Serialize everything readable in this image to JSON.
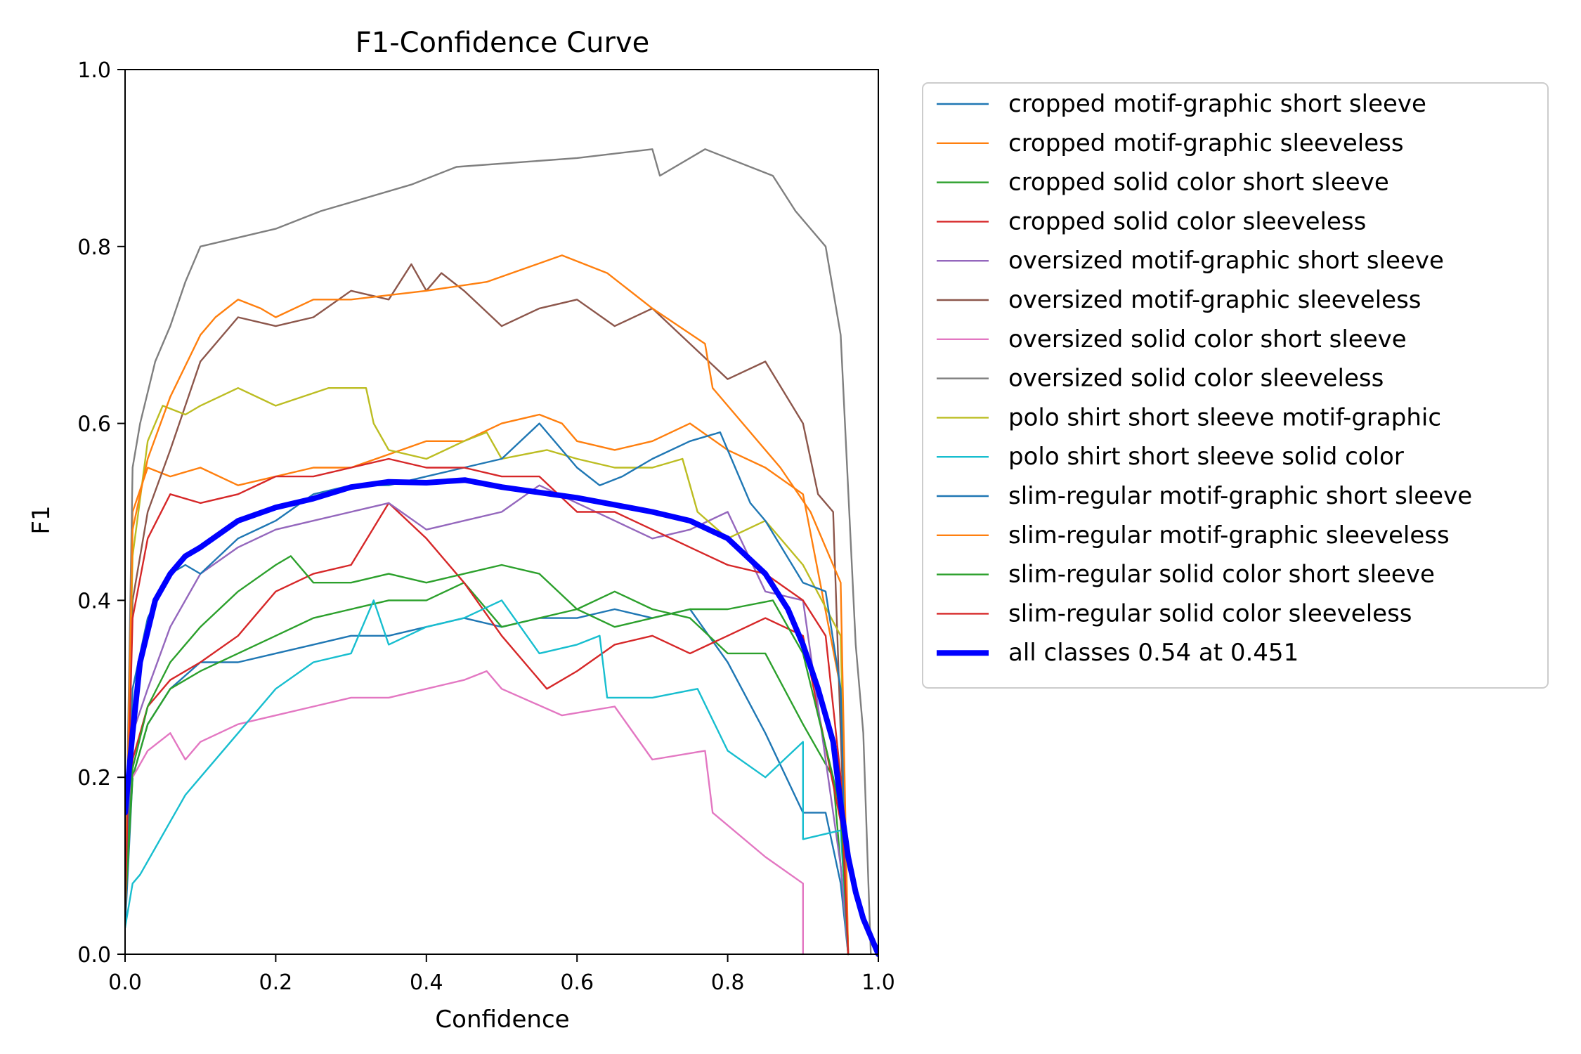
{
  "chart_data": {
    "type": "line",
    "title": "F1-Confidence Curve",
    "xlabel": "Confidence",
    "ylabel": "F1",
    "xlim": [
      0.0,
      1.0
    ],
    "ylim": [
      0.0,
      1.0
    ],
    "xticks": [
      "0.0",
      "0.2",
      "0.4",
      "0.6",
      "0.8",
      "1.0"
    ],
    "yticks": [
      "0.0",
      "0.2",
      "0.4",
      "0.6",
      "0.8",
      "1.0"
    ],
    "grid": false,
    "legend_position": "outside-right-top",
    "series": [
      {
        "name": "cropped motif-graphic short sleeve",
        "color": "#1f77b4",
        "x": [
          0,
          0.01,
          0.03,
          0.06,
          0.1,
          0.15,
          0.2,
          0.25,
          0.3,
          0.35,
          0.4,
          0.45,
          0.5,
          0.55,
          0.6,
          0.65,
          0.7,
          0.75,
          0.8,
          0.85,
          0.9,
          0.93,
          0.95,
          0.96
        ],
        "y": [
          0.03,
          0.2,
          0.26,
          0.3,
          0.33,
          0.33,
          0.34,
          0.35,
          0.36,
          0.36,
          0.37,
          0.38,
          0.37,
          0.38,
          0.38,
          0.39,
          0.38,
          0.39,
          0.33,
          0.25,
          0.16,
          0.16,
          0.08,
          0.0
        ]
      },
      {
        "name": "cropped motif-graphic sleeveless",
        "color": "#ff7f0e",
        "x": [
          0,
          0.01,
          0.03,
          0.06,
          0.1,
          0.15,
          0.2,
          0.25,
          0.3,
          0.4,
          0.45,
          0.5,
          0.55,
          0.58,
          0.6,
          0.65,
          0.7,
          0.75,
          0.8,
          0.85,
          0.9,
          0.95,
          0.96
        ],
        "y": [
          0.05,
          0.5,
          0.55,
          0.54,
          0.55,
          0.53,
          0.54,
          0.55,
          0.55,
          0.58,
          0.58,
          0.6,
          0.61,
          0.6,
          0.58,
          0.57,
          0.58,
          0.6,
          0.57,
          0.55,
          0.52,
          0.3,
          0.0
        ]
      },
      {
        "name": "cropped solid color short sleeve",
        "color": "#2ca02c",
        "x": [
          0,
          0.01,
          0.03,
          0.06,
          0.1,
          0.15,
          0.2,
          0.25,
          0.3,
          0.35,
          0.4,
          0.45,
          0.5,
          0.55,
          0.6,
          0.65,
          0.7,
          0.75,
          0.8,
          0.85,
          0.9,
          0.94,
          0.96
        ],
        "y": [
          0.05,
          0.2,
          0.26,
          0.3,
          0.32,
          0.34,
          0.36,
          0.38,
          0.39,
          0.4,
          0.4,
          0.42,
          0.37,
          0.38,
          0.39,
          0.41,
          0.39,
          0.38,
          0.34,
          0.34,
          0.26,
          0.2,
          0.0
        ]
      },
      {
        "name": "cropped solid color sleeveless",
        "color": "#d62728",
        "x": [
          0,
          0.01,
          0.03,
          0.06,
          0.1,
          0.15,
          0.2,
          0.25,
          0.3,
          0.35,
          0.4,
          0.45,
          0.5,
          0.56,
          0.6,
          0.65,
          0.7,
          0.75,
          0.8,
          0.85,
          0.9,
          0.95,
          0.96
        ],
        "y": [
          0.05,
          0.22,
          0.28,
          0.31,
          0.33,
          0.36,
          0.41,
          0.43,
          0.44,
          0.51,
          0.47,
          0.42,
          0.36,
          0.3,
          0.32,
          0.35,
          0.36,
          0.34,
          0.36,
          0.38,
          0.36,
          0.15,
          0.0
        ]
      },
      {
        "name": "oversized motif-graphic short sleeve",
        "color": "#9467bd",
        "x": [
          0,
          0.01,
          0.03,
          0.06,
          0.1,
          0.15,
          0.2,
          0.25,
          0.3,
          0.35,
          0.4,
          0.45,
          0.5,
          0.55,
          0.6,
          0.65,
          0.7,
          0.75,
          0.8,
          0.85,
          0.9,
          0.95,
          0.96
        ],
        "y": [
          0.05,
          0.25,
          0.3,
          0.37,
          0.43,
          0.46,
          0.48,
          0.49,
          0.5,
          0.51,
          0.48,
          0.49,
          0.5,
          0.53,
          0.51,
          0.49,
          0.47,
          0.48,
          0.5,
          0.41,
          0.4,
          0.1,
          0.0
        ]
      },
      {
        "name": "oversized motif-graphic sleeveless",
        "color": "#8c564b",
        "x": [
          0,
          0.01,
          0.03,
          0.06,
          0.1,
          0.15,
          0.2,
          0.25,
          0.3,
          0.35,
          0.38,
          0.4,
          0.42,
          0.45,
          0.5,
          0.55,
          0.6,
          0.65,
          0.7,
          0.75,
          0.8,
          0.85,
          0.9,
          0.92,
          0.94,
          0.96
        ],
        "y": [
          0.05,
          0.4,
          0.5,
          0.57,
          0.67,
          0.72,
          0.71,
          0.72,
          0.75,
          0.74,
          0.78,
          0.75,
          0.77,
          0.75,
          0.71,
          0.73,
          0.74,
          0.71,
          0.73,
          0.69,
          0.65,
          0.67,
          0.6,
          0.52,
          0.5,
          0.0
        ]
      },
      {
        "name": "oversized solid color short sleeve",
        "color": "#e377c2",
        "x": [
          0.01,
          0.03,
          0.06,
          0.08,
          0.1,
          0.15,
          0.2,
          0.25,
          0.3,
          0.35,
          0.4,
          0.45,
          0.48,
          0.5,
          0.58,
          0.65,
          0.7,
          0.77,
          0.78,
          0.85,
          0.9,
          0.9
        ],
        "y": [
          0.2,
          0.23,
          0.25,
          0.22,
          0.24,
          0.26,
          0.27,
          0.28,
          0.29,
          0.29,
          0.3,
          0.31,
          0.32,
          0.3,
          0.27,
          0.28,
          0.22,
          0.23,
          0.16,
          0.11,
          0.08,
          0.0
        ]
      },
      {
        "name": "oversized solid color sleeveless",
        "color": "#7f7f7f",
        "x": [
          0,
          0.01,
          0.02,
          0.04,
          0.06,
          0.08,
          0.1,
          0.2,
          0.26,
          0.38,
          0.44,
          0.6,
          0.7,
          0.71,
          0.77,
          0.86,
          0.89,
          0.93,
          0.95,
          0.97,
          0.98,
          0.99
        ],
        "y": [
          0.05,
          0.55,
          0.6,
          0.67,
          0.71,
          0.76,
          0.8,
          0.82,
          0.84,
          0.87,
          0.89,
          0.9,
          0.91,
          0.88,
          0.91,
          0.88,
          0.84,
          0.8,
          0.7,
          0.35,
          0.25,
          0.0
        ]
      },
      {
        "name": "polo shirt short sleeve motif-graphic",
        "color": "#bcbd22",
        "x": [
          0,
          0.01,
          0.03,
          0.05,
          0.08,
          0.1,
          0.15,
          0.2,
          0.27,
          0.32,
          0.33,
          0.35,
          0.4,
          0.45,
          0.48,
          0.5,
          0.56,
          0.6,
          0.65,
          0.7,
          0.74,
          0.76,
          0.8,
          0.85,
          0.9,
          0.95,
          0.96
        ],
        "y": [
          0.05,
          0.45,
          0.58,
          0.62,
          0.61,
          0.62,
          0.64,
          0.62,
          0.64,
          0.64,
          0.6,
          0.57,
          0.56,
          0.58,
          0.59,
          0.56,
          0.57,
          0.56,
          0.55,
          0.55,
          0.56,
          0.5,
          0.47,
          0.49,
          0.44,
          0.36,
          0.0
        ]
      },
      {
        "name": "polo shirt short sleeve solid color",
        "color": "#17becf",
        "x": [
          0,
          0.01,
          0.02,
          0.04,
          0.06,
          0.08,
          0.1,
          0.15,
          0.2,
          0.25,
          0.3,
          0.33,
          0.35,
          0.4,
          0.45,
          0.5,
          0.55,
          0.6,
          0.63,
          0.64,
          0.7,
          0.76,
          0.8,
          0.85,
          0.9,
          0.9,
          0.95,
          0.96
        ],
        "y": [
          0.03,
          0.08,
          0.09,
          0.12,
          0.15,
          0.18,
          0.2,
          0.25,
          0.3,
          0.33,
          0.34,
          0.4,
          0.35,
          0.37,
          0.38,
          0.4,
          0.34,
          0.35,
          0.36,
          0.29,
          0.29,
          0.3,
          0.23,
          0.2,
          0.24,
          0.13,
          0.14,
          0.0
        ]
      },
      {
        "name": "slim-regular motif-graphic short sleeve",
        "color": "#1f77b4",
        "x": [
          0,
          0.01,
          0.03,
          0.06,
          0.08,
          0.1,
          0.15,
          0.2,
          0.25,
          0.3,
          0.35,
          0.4,
          0.45,
          0.5,
          0.55,
          0.6,
          0.63,
          0.66,
          0.7,
          0.75,
          0.79,
          0.8,
          0.83,
          0.85,
          0.9,
          0.93,
          0.95,
          0.96
        ],
        "y": [
          0.05,
          0.3,
          0.38,
          0.43,
          0.44,
          0.43,
          0.47,
          0.49,
          0.52,
          0.53,
          0.53,
          0.54,
          0.55,
          0.56,
          0.6,
          0.55,
          0.53,
          0.54,
          0.56,
          0.58,
          0.59,
          0.57,
          0.51,
          0.49,
          0.42,
          0.41,
          0.3,
          0.0
        ]
      },
      {
        "name": "slim-regular motif-graphic sleeveless",
        "color": "#ff7f0e",
        "x": [
          0,
          0.01,
          0.03,
          0.06,
          0.1,
          0.12,
          0.15,
          0.18,
          0.2,
          0.25,
          0.3,
          0.4,
          0.48,
          0.58,
          0.64,
          0.7,
          0.77,
          0.78,
          0.87,
          0.91,
          0.95,
          0.96
        ],
        "y": [
          0.05,
          0.48,
          0.56,
          0.63,
          0.7,
          0.72,
          0.74,
          0.73,
          0.72,
          0.74,
          0.74,
          0.75,
          0.76,
          0.79,
          0.77,
          0.73,
          0.69,
          0.64,
          0.55,
          0.5,
          0.42,
          0.0
        ]
      },
      {
        "name": "slim-regular solid color short sleeve",
        "color": "#2ca02c",
        "x": [
          0,
          0.01,
          0.03,
          0.06,
          0.1,
          0.15,
          0.2,
          0.22,
          0.25,
          0.3,
          0.35,
          0.4,
          0.45,
          0.5,
          0.55,
          0.6,
          0.65,
          0.7,
          0.75,
          0.8,
          0.86,
          0.9,
          0.94,
          0.95,
          0.96
        ],
        "y": [
          0.05,
          0.21,
          0.28,
          0.33,
          0.37,
          0.41,
          0.44,
          0.45,
          0.42,
          0.42,
          0.43,
          0.42,
          0.43,
          0.44,
          0.43,
          0.39,
          0.37,
          0.38,
          0.39,
          0.39,
          0.4,
          0.34,
          0.2,
          0.16,
          0.0
        ]
      },
      {
        "name": "slim-regular solid color sleeveless",
        "color": "#d62728",
        "x": [
          0,
          0.01,
          0.03,
          0.06,
          0.1,
          0.15,
          0.2,
          0.25,
          0.3,
          0.35,
          0.4,
          0.45,
          0.5,
          0.55,
          0.6,
          0.65,
          0.7,
          0.75,
          0.8,
          0.85,
          0.9,
          0.93,
          0.95,
          0.96
        ],
        "y": [
          0.05,
          0.38,
          0.47,
          0.52,
          0.51,
          0.52,
          0.54,
          0.54,
          0.55,
          0.56,
          0.55,
          0.55,
          0.54,
          0.54,
          0.5,
          0.5,
          0.48,
          0.46,
          0.44,
          0.43,
          0.4,
          0.36,
          0.2,
          0.0
        ]
      },
      {
        "name": "all classes 0.54 at 0.451",
        "color": "#0000ff",
        "bold": true,
        "x": [
          0,
          0.01,
          0.02,
          0.04,
          0.06,
          0.08,
          0.1,
          0.15,
          0.2,
          0.25,
          0.3,
          0.35,
          0.4,
          0.451,
          0.5,
          0.55,
          0.6,
          0.65,
          0.7,
          0.75,
          0.8,
          0.85,
          0.88,
          0.9,
          0.92,
          0.94,
          0.95,
          0.96,
          0.97,
          0.98,
          0.99,
          1.0
        ],
        "y": [
          0.16,
          0.25,
          0.33,
          0.4,
          0.43,
          0.45,
          0.46,
          0.49,
          0.505,
          0.515,
          0.528,
          0.534,
          0.533,
          0.536,
          0.528,
          0.522,
          0.516,
          0.508,
          0.5,
          0.49,
          0.47,
          0.43,
          0.39,
          0.35,
          0.3,
          0.24,
          0.17,
          0.11,
          0.07,
          0.04,
          0.02,
          0.0
        ]
      }
    ]
  }
}
